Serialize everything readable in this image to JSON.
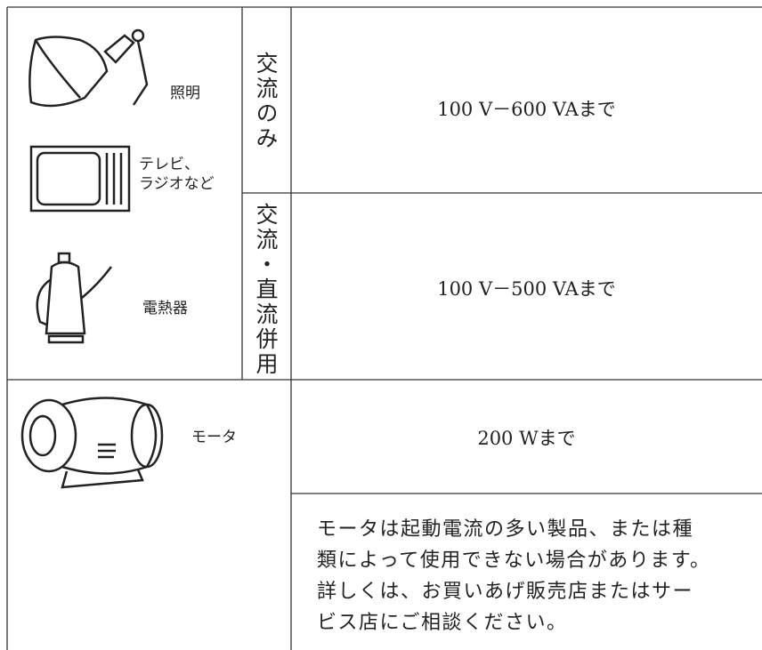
{
  "rows": [
    {
      "devices": [
        {
          "label_lines": [
            "照明"
          ]
        },
        {
          "label_lines": [
            "テレビ、",
            "ラジオなど"
          ]
        }
      ],
      "current": "交流のみ",
      "limit": "100 V－600 VAまで"
    },
    {
      "devices": [
        {
          "label_lines": [
            "電熱器"
          ]
        }
      ],
      "current": "交流・直流併用",
      "limit": "100 V－500 VAまで"
    }
  ],
  "motor": {
    "label": "モータ",
    "limit": "200 Wまで",
    "note_lines": [
      "モータは起動電流の多い製品、または種",
      "類によって使用できない場合があります。",
      "詳しくは、お買いあげ販売店またはサー",
      "ビス店にご相談ください。"
    ]
  }
}
